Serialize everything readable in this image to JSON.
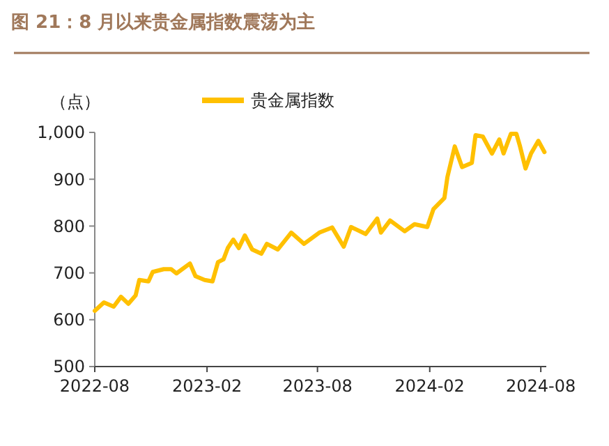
{
  "chart_data": {
    "type": "line",
    "title": "图 21：8 月以来贵金属指数震荡为主",
    "ylabel": "（点）",
    "legend": "top",
    "grid": false,
    "line_style": "solid",
    "marker": "none",
    "xlim": [
      "2022-08-01",
      "2024-08-10"
    ],
    "xticks": [
      "2022-08",
      "2023-02",
      "2023-08",
      "2024-02",
      "2024-08"
    ],
    "ylim": [
      500,
      1000
    ],
    "yticks": [
      500,
      600,
      700,
      800,
      900,
      {
        "value": 1000,
        "label": "1,000"
      }
    ],
    "series": [
      {
        "name": "贵金属指数",
        "color": "#ffc000",
        "x": [
          "2022-08-01",
          "2022-08-16",
          "2022-09-01",
          "2022-09-13",
          "2022-09-25",
          "2022-10-07",
          "2022-10-13",
          "2022-10-28",
          "2022-11-04",
          "2022-11-22",
          "2022-12-04",
          "2022-12-13",
          "2023-01-04",
          "2023-01-13",
          "2023-01-28",
          "2023-02-10",
          "2023-02-19",
          "2023-02-28",
          "2023-03-07",
          "2023-03-16",
          "2023-03-25",
          "2023-04-04",
          "2023-04-16",
          "2023-05-01",
          "2023-05-10",
          "2023-05-28",
          "2023-06-19",
          "2023-07-10",
          "2023-08-04",
          "2023-08-25",
          "2023-09-13",
          "2023-09-25",
          "2023-10-19",
          "2023-11-07",
          "2023-11-13",
          "2023-11-28",
          "2023-12-22",
          "2024-01-07",
          "2024-01-28",
          "2024-02-07",
          "2024-02-25",
          "2024-03-01",
          "2024-03-13",
          "2024-03-25",
          "2024-04-10",
          "2024-04-16",
          "2024-04-28",
          "2024-05-13",
          "2024-05-25",
          "2024-06-01",
          "2024-06-13",
          "2024-06-22",
          "2024-06-28",
          "2024-07-07",
          "2024-07-16",
          "2024-07-28",
          "2024-08-07"
        ],
        "values": [
          619,
          637,
          628,
          649,
          634,
          652,
          685,
          682,
          702,
          708,
          708,
          699,
          720,
          693,
          685,
          682,
          723,
          729,
          753,
          771,
          753,
          780,
          750,
          741,
          762,
          750,
          786,
          762,
          786,
          797,
          756,
          798,
          783,
          816,
          786,
          812,
          789,
          804,
          798,
          836,
          860,
          905,
          970,
          926,
          935,
          994,
          991,
          955,
          985,
          955,
          997,
          997,
          970,
          923,
          955,
          982,
          958
        ]
      }
    ]
  }
}
